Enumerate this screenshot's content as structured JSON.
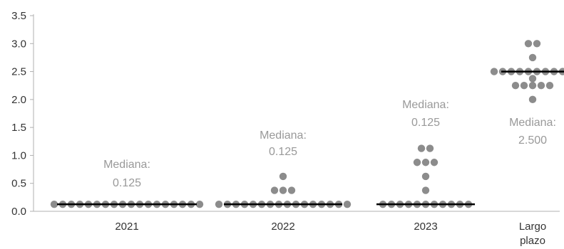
{
  "chart_data": {
    "type": "scatter",
    "title": "",
    "xlabel": "",
    "ylabel": "",
    "ylim": [
      0,
      3.5
    ],
    "yticks": [
      "0.0",
      "0.5",
      "1.0",
      "1.5",
      "2.0",
      "2.5",
      "3.0",
      "3.5"
    ],
    "grid": false,
    "legend": "none",
    "point_color": "#8c8c8c",
    "median_color": "#000000",
    "categories": [
      {
        "label_lines": [
          "2021"
        ],
        "median": 0.125,
        "median_label": [
          "Mediana:",
          "0.125"
        ],
        "points": [
          {
            "value": 0.125,
            "count": 18
          }
        ]
      },
      {
        "label_lines": [
          "2022"
        ],
        "median": 0.125,
        "median_label": [
          "Mediana:",
          "0.125"
        ],
        "points": [
          {
            "value": 0.125,
            "count": 16
          },
          {
            "value": 0.375,
            "count": 3
          },
          {
            "value": 0.625,
            "count": 1
          }
        ]
      },
      {
        "label_lines": [
          "2023"
        ],
        "median": 0.125,
        "median_label": [
          "Mediana:",
          "0.125"
        ],
        "points": [
          {
            "value": 0.125,
            "count": 11
          },
          {
            "value": 0.375,
            "count": 1
          },
          {
            "value": 0.625,
            "count": 1
          },
          {
            "value": 0.875,
            "count": 3
          },
          {
            "value": 1.125,
            "count": 2
          }
        ]
      },
      {
        "label_lines": [
          "Largo",
          "plazo"
        ],
        "median": 2.5,
        "median_label": [
          "Mediana:",
          "2.500"
        ],
        "points": [
          {
            "value": 2.0,
            "count": 1
          },
          {
            "value": 2.25,
            "count": 5
          },
          {
            "value": 2.375,
            "count": 1
          },
          {
            "value": 2.5,
            "count": 10
          },
          {
            "value": 2.75,
            "count": 1
          },
          {
            "value": 3.0,
            "count": 2
          }
        ]
      }
    ]
  }
}
